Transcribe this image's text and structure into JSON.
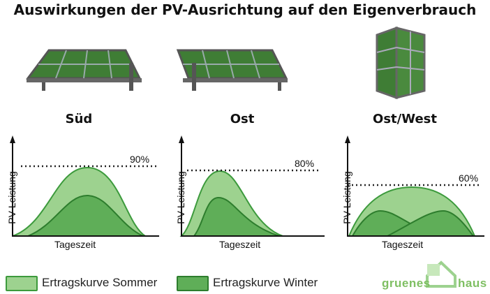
{
  "title": "Auswirkungen der PV-Ausrichtung auf den Eigenverbrauch",
  "panels": [
    {
      "label": "Süd",
      "percent": "90%",
      "ylabel": "PV-Leistung",
      "xlabel": "Tageszeit"
    },
    {
      "label": "Ost",
      "percent": "80%",
      "ylabel": "PV-Leistung",
      "xlabel": "Tageszeit"
    },
    {
      "label": "Ost/West",
      "percent": "60%",
      "ylabel": "PV-Leistung",
      "xlabel": "Tageszeit"
    }
  ],
  "legend": {
    "summer": "Ertragskurve Sommer",
    "winter": "Ertragskurve Winter"
  },
  "brand": {
    "left": "gruenes",
    "right": "haus"
  },
  "colors": {
    "summer_fill": "#9dd28f",
    "summer_stroke": "#3c9a3c",
    "winter_fill": "#5fae58",
    "winter_stroke": "#2d7d2d",
    "brand": "#7fbf63"
  }
}
